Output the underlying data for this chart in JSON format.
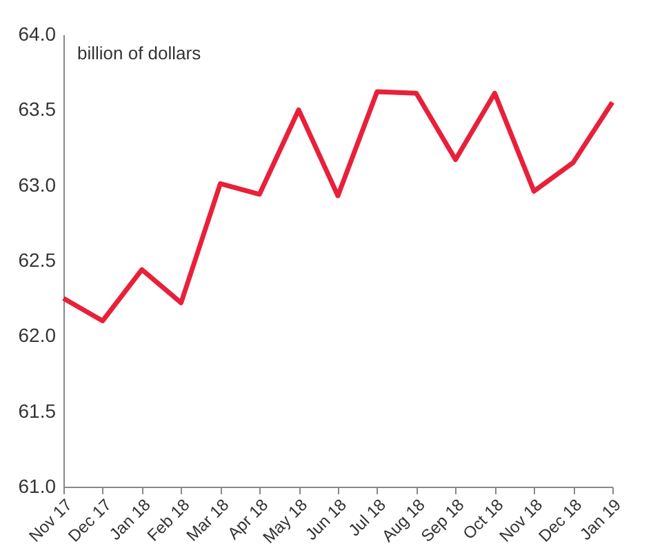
{
  "chart_data": {
    "type": "line",
    "categories": [
      "Nov 17",
      "Dec 17",
      "Jan 18",
      "Feb 18",
      "Mar 18",
      "Apr 18",
      "May 18",
      "Jun 18",
      "Jul 18",
      "Aug 18",
      "Sep 18",
      "Oct 18",
      "Nov 18",
      "Dec 18",
      "Jan 19"
    ],
    "series": [
      {
        "color": "#e8203a",
        "values": [
          62.25,
          62.1,
          62.44,
          62.22,
          63.01,
          62.94,
          63.5,
          62.93,
          63.62,
          63.61,
          63.17,
          63.61,
          62.96,
          63.15,
          63.55
        ]
      }
    ],
    "ylim": [
      61.0,
      64.0
    ],
    "yticks": [
      {
        "value": 61,
        "label": "61.0"
      },
      {
        "value": 61.5,
        "label": "61.5"
      },
      {
        "value": 62,
        "label": "62.0"
      },
      {
        "value": 62.5,
        "label": "62.5"
      },
      {
        "value": 63,
        "label": "63.0"
      },
      {
        "value": 63.5,
        "label": "63.5"
      },
      {
        "value": 64,
        "label": "64.0"
      }
    ],
    "annotations": [
      "billion of dollars"
    ],
    "grid": false,
    "marker": "none",
    "line_style": "solid"
  }
}
